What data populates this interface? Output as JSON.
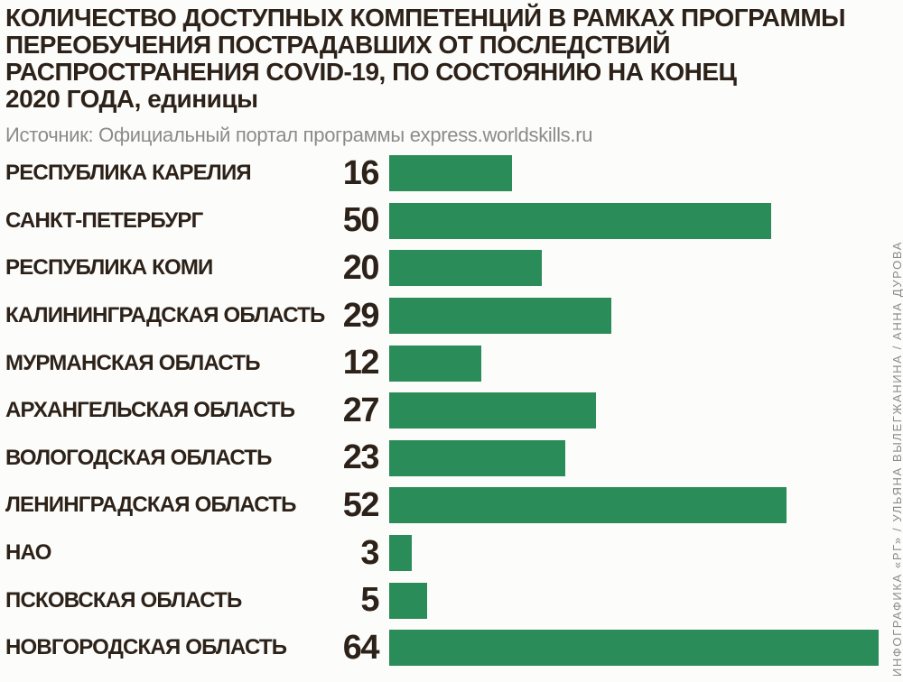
{
  "header": {
    "title_lines": [
      "КОЛИЧЕСТВО ДОСТУПНЫХ КОМПЕТЕНЦИЙ В РАМКАХ ПРОГРАММЫ",
      "ПЕРЕОБУЧЕНИЯ ПОСТРАДАВШИХ ОТ ПОСЛЕДСТВИЙ",
      "РАСПРОСТРАНЕНИЯ COVID-19, ПО СОСТОЯНИЮ НА КОНЕЦ",
      "2020 ГОДА, единицы"
    ],
    "source": "Источник: Официальный портал программы express.worldskills.ru"
  },
  "credit": "ИНФОГРАФИКА «РГ» / УЛЬЯНА ВЫЛЕГЖАНИНА / АННА ДУРОВА",
  "colors": {
    "bar": "#2a8c58",
    "text": "#2d2219",
    "muted": "#8b8b88",
    "background": "#fcfcfa"
  },
  "chart_data": {
    "type": "bar",
    "orientation": "horizontal",
    "title": "КОЛИЧЕСТВО ДОСТУПНЫХ КОМПЕТЕНЦИЙ В РАМКАХ ПРОГРАММЫ ПЕРЕОБУЧЕНИЯ ПОСТРАДАВШИХ ОТ ПОСЛЕДСТВИЙ РАСПРОСТРАНЕНИЯ COVID-19, ПО СОСТОЯНИЮ НА КОНЕЦ 2020 ГОДА, единицы",
    "units": "единицы",
    "source": "Официальный портал программы express.worldskills.ru",
    "categories": [
      "РЕСПУБЛИКА КАРЕЛИЯ",
      "САНКТ-ПЕТЕРБУРГ",
      "РЕСПУБЛИКА КОМИ",
      "КАЛИНИНГРАДСКАЯ ОБЛАСТЬ",
      "МУРМАНСКАЯ ОБЛАСТЬ",
      "АРХАНГЕЛЬСКАЯ ОБЛАСТЬ",
      "ВОЛОГОДСКАЯ ОБЛАСТЬ",
      "ЛЕНИНГРАДСКАЯ ОБЛАСТЬ",
      "НАО",
      "ПСКОВСКАЯ ОБЛАСТЬ",
      "НОВГОРОДСКАЯ ОБЛАСТЬ"
    ],
    "values": [
      16,
      50,
      20,
      29,
      12,
      27,
      23,
      52,
      3,
      5,
      64
    ],
    "xlim": [
      0,
      64
    ],
    "xlabel": "",
    "ylabel": "",
    "grid": false,
    "legend": "none",
    "value_labels": "left-of-bar"
  }
}
